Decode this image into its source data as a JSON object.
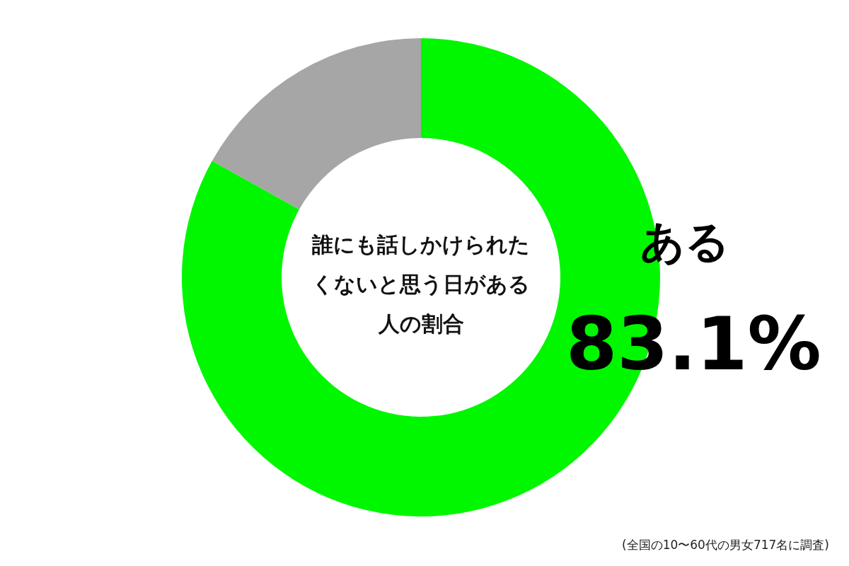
{
  "chart_data": {
    "type": "donut",
    "title": "誰にも話しかけられたくないと思う日がある人の割合",
    "categories": [
      "ある",
      null
    ],
    "values": [
      83.1,
      16.9
    ],
    "colors": [
      "#00f700",
      "#a6a6a6"
    ],
    "value_labels": [
      "83.1%",
      null
    ],
    "annotations": [
      "(全国の10〜60代の男女717名に調査)"
    ]
  }
}
